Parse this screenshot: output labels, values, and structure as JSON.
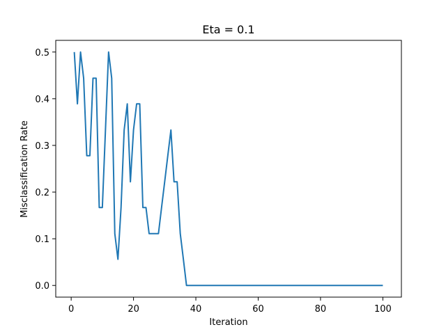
{
  "chart_data": {
    "type": "line",
    "title": "Eta = 0.1",
    "xlabel": "Iteration",
    "ylabel": "Misclassification Rate",
    "xlim": [
      -4.95,
      105.95
    ],
    "ylim": [
      -0.025,
      0.525
    ],
    "xticks": [
      0,
      20,
      40,
      60,
      80,
      100
    ],
    "yticks": [
      0.0,
      0.1,
      0.2,
      0.3,
      0.4,
      0.5
    ],
    "xtick_labels": [
      "0",
      "20",
      "40",
      "60",
      "80",
      "100"
    ],
    "ytick_labels": [
      "0.0",
      "0.1",
      "0.2",
      "0.3",
      "0.4",
      "0.5"
    ],
    "grid": false,
    "legend": "none",
    "series_color": "#1f77b4",
    "series": [
      {
        "x": [
          1,
          2,
          3,
          4,
          5,
          6,
          7,
          8,
          9,
          10,
          11,
          12,
          13,
          14,
          15,
          16,
          17,
          18,
          19,
          20,
          21,
          22,
          23,
          24,
          25,
          26,
          27,
          28,
          29,
          30,
          31,
          32,
          33,
          34,
          35,
          36,
          37,
          38,
          39,
          40,
          41,
          42,
          43,
          44,
          45,
          46,
          47,
          48,
          49,
          50,
          51,
          52,
          53,
          54,
          55,
          56,
          57,
          58,
          59,
          60,
          61,
          62,
          63,
          64,
          65,
          66,
          67,
          68,
          69,
          70,
          71,
          72,
          73,
          74,
          75,
          76,
          77,
          78,
          79,
          80,
          81,
          82,
          83,
          84,
          85,
          86,
          87,
          88,
          89,
          90,
          91,
          92,
          93,
          94,
          95,
          96,
          97,
          98,
          99,
          100
        ],
        "values": [
          0.5,
          0.389,
          0.5,
          0.444,
          0.278,
          0.278,
          0.444,
          0.444,
          0.167,
          0.167,
          0.333,
          0.5,
          0.444,
          0.111,
          0.056,
          0.167,
          0.333,
          0.389,
          0.222,
          0.333,
          0.389,
          0.389,
          0.167,
          0.167,
          0.111,
          0.111,
          0.111,
          0.111,
          0.167,
          0.222,
          0.278,
          0.333,
          0.222,
          0.222,
          0.111,
          0.056,
          0.0,
          0.0,
          0.0,
          0.0,
          0.0,
          0.0,
          0.0,
          0.0,
          0.0,
          0.0,
          0.0,
          0.0,
          0.0,
          0.0,
          0.0,
          0.0,
          0.0,
          0.0,
          0.0,
          0.0,
          0.0,
          0.0,
          0.0,
          0.0,
          0.0,
          0.0,
          0.0,
          0.0,
          0.0,
          0.0,
          0.0,
          0.0,
          0.0,
          0.0,
          0.0,
          0.0,
          0.0,
          0.0,
          0.0,
          0.0,
          0.0,
          0.0,
          0.0,
          0.0,
          0.0,
          0.0,
          0.0,
          0.0,
          0.0,
          0.0,
          0.0,
          0.0,
          0.0,
          0.0,
          0.0,
          0.0,
          0.0,
          0.0,
          0.0,
          0.0,
          0.0,
          0.0,
          0.0,
          0.0
        ]
      }
    ]
  }
}
